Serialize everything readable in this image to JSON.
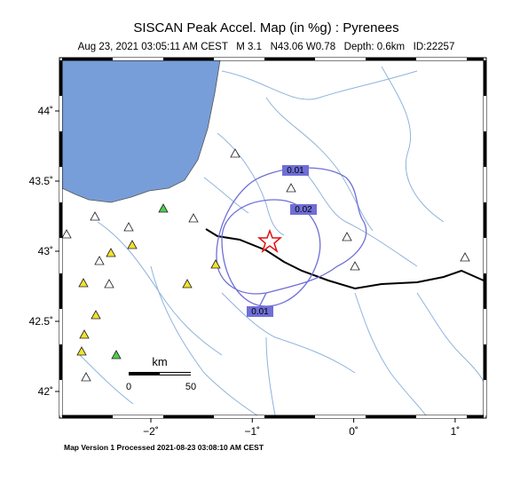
{
  "header": {
    "title": "SISCAN Peak Accel. Map (in %g) : Pyrenees",
    "subtitle": "Aug 23, 2021 03:05:11 AM CEST   M 3.1   N43.06 W0.78   Depth: 0.6km   ID:22257"
  },
  "lat_ticks": [
    {
      "value": 44,
      "label": "44˚"
    },
    {
      "value": 43.5,
      "label": "43.5˚"
    },
    {
      "value": 43,
      "label": "43˚"
    },
    {
      "value": 42.5,
      "label": "42.5˚"
    },
    {
      "value": 42,
      "label": "42˚"
    }
  ],
  "lon_ticks": [
    {
      "value": -2,
      "label": "−2˚"
    },
    {
      "value": -1,
      "label": "−1˚"
    },
    {
      "value": 0,
      "label": "0˚"
    },
    {
      "value": 1,
      "label": "1˚"
    }
  ],
  "contours": [
    "0.01",
    "0.02"
  ],
  "scale_bar": {
    "unit": "km",
    "labels": [
      "0",
      "50"
    ]
  },
  "footer": "Map Version 1 Processed 2021-08-23 03:08:10 AM CEST"
}
